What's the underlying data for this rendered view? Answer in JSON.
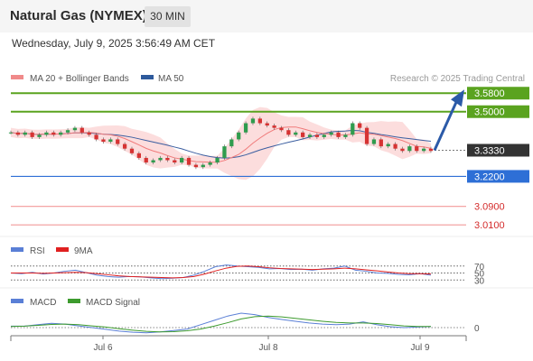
{
  "header": {
    "title": "Natural Gas (NYMEX)",
    "timeframe": "30 MIN",
    "datetime": "Wednesday, July 9, 2025 3:56:49 AM CET"
  },
  "colors": {
    "resistance": "#5aa31f",
    "support": "#2e6fd6",
    "support_light": "#f29a9a",
    "support_light_label": "#d42b2b",
    "current": "#333333",
    "arrow": "#2b5aa8",
    "candle_up": "#2f9c4e",
    "candle_down": "#d63333",
    "ma20": "#f07b7b",
    "ma50": "#3b5ea0",
    "band_fill": "#fbd5d5",
    "rsi": "#5a7fd6",
    "rsi_ma": "#e02020",
    "macd": "#5a7fd6",
    "macd_signal": "#3d9b2e"
  },
  "price_panel": {
    "legend": [
      {
        "label": "MA 20 + Bollinger Bands",
        "color": "#f08a8a"
      },
      {
        "label": "MA 50",
        "color": "#2e5a9c"
      }
    ],
    "copyright": "Research © 2025 Trading Central"
  },
  "rsi_panel": {
    "legend": [
      {
        "label": "RSI",
        "color": "#5a7fd6"
      },
      {
        "label": "9MA",
        "color": "#e02020"
      }
    ],
    "levels": [
      "70",
      "50",
      "30"
    ]
  },
  "macd_panel": {
    "legend": [
      {
        "label": "MACD",
        "color": "#5a7fd6"
      },
      {
        "label": "MACD Signal",
        "color": "#3d9b2e"
      }
    ],
    "zero_label": "0"
  },
  "chart_data": {
    "type": "candlestick",
    "title": "Natural Gas (NYMEX)",
    "timeframe": "30 MIN",
    "x_tick_labels": [
      "Jul 6",
      "Jul 8",
      "Jul 9"
    ],
    "ylim": [
      2.96,
      3.62
    ],
    "current_price": 3.333,
    "levels": [
      {
        "kind": "resistance",
        "value": 3.58,
        "label": "3.5800"
      },
      {
        "kind": "resistance",
        "value": 3.5,
        "label": "3.5000"
      },
      {
        "kind": "current",
        "value": 3.333,
        "label": "3.3330"
      },
      {
        "kind": "support",
        "value": 3.22,
        "label": "3.2200"
      },
      {
        "kind": "support",
        "value": 3.09,
        "label": "3.0900"
      },
      {
        "kind": "support",
        "value": 3.01,
        "label": "3.0100"
      }
    ],
    "forecast_arrow": {
      "from": 3.333,
      "to": 3.58
    },
    "closes": [
      3.41,
      3.4,
      3.41,
      3.39,
      3.4,
      3.41,
      3.4,
      3.41,
      3.42,
      3.43,
      3.41,
      3.4,
      3.38,
      3.37,
      3.38,
      3.36,
      3.34,
      3.32,
      3.3,
      3.28,
      3.29,
      3.3,
      3.29,
      3.28,
      3.3,
      3.27,
      3.26,
      3.27,
      3.28,
      3.3,
      3.35,
      3.38,
      3.41,
      3.45,
      3.47,
      3.45,
      3.44,
      3.43,
      3.42,
      3.4,
      3.41,
      3.39,
      3.4,
      3.39,
      3.4,
      3.41,
      3.39,
      3.4,
      3.45,
      3.43,
      3.36,
      3.38,
      3.35,
      3.36,
      3.34,
      3.33,
      3.35,
      3.33,
      3.34,
      3.33
    ],
    "rsi": [
      50,
      48,
      52,
      47,
      50,
      55,
      58,
      51,
      44,
      40,
      38,
      40,
      39,
      36,
      34,
      35,
      37,
      44,
      55,
      68,
      73,
      70,
      68,
      66,
      62,
      63,
      60,
      61,
      58,
      62,
      64,
      70,
      58,
      55,
      50,
      49,
      46,
      45,
      48,
      44
    ],
    "rsi_ma": [
      50,
      50,
      50,
      49,
      50,
      51,
      52,
      51,
      48,
      45,
      42,
      40,
      39,
      38,
      37,
      36,
      37,
      40,
      47,
      56,
      64,
      69,
      70,
      68,
      65,
      63,
      62,
      61,
      60,
      61,
      62,
      64,
      62,
      59,
      56,
      53,
      50,
      48,
      48,
      47
    ],
    "macd": [
      0.005,
      0.005,
      0.01,
      0.015,
      0.012,
      0.006,
      0.0,
      -0.006,
      -0.012,
      -0.016,
      -0.018,
      -0.015,
      -0.01,
      -0.005,
      0.01,
      0.025,
      0.04,
      0.05,
      0.045,
      0.035,
      0.028,
      0.022,
      0.016,
      0.012,
      0.01,
      0.012,
      0.02,
      0.01,
      0.003,
      0.0,
      0.002,
      0.004
    ],
    "macd_signal": [
      0.004,
      0.005,
      0.008,
      0.011,
      0.012,
      0.01,
      0.006,
      0.002,
      -0.004,
      -0.009,
      -0.013,
      -0.015,
      -0.014,
      -0.011,
      -0.005,
      0.005,
      0.017,
      0.03,
      0.038,
      0.04,
      0.037,
      0.032,
      0.027,
      0.022,
      0.018,
      0.016,
      0.016,
      0.014,
      0.01,
      0.006,
      0.004,
      0.004
    ]
  }
}
